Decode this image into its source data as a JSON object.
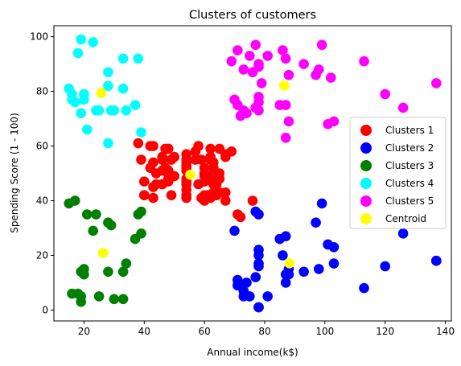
{
  "chart_data": {
    "type": "scatter",
    "title": "Clusters of customers",
    "xlabel": "Annual income(k$)",
    "ylabel": "Spending Score (1 - 100)",
    "xlim": [
      10,
      142
    ],
    "ylim": [
      -4,
      104
    ],
    "x_ticks": [
      20,
      40,
      60,
      80,
      100,
      120,
      140
    ],
    "y_ticks": [
      0,
      20,
      40,
      60,
      80,
      100
    ],
    "grid": false,
    "legend_position": "center-right",
    "series": [
      {
        "name": "Clusters 1",
        "color": "#ff0000",
        "points": [
          [
            38,
            61
          ],
          [
            39,
            55
          ],
          [
            40,
            47
          ],
          [
            40,
            42
          ],
          [
            40,
            42
          ],
          [
            42,
            52
          ],
          [
            42,
            60
          ],
          [
            43,
            54
          ],
          [
            43,
            60
          ],
          [
            43,
            45
          ],
          [
            43,
            41
          ],
          [
            44,
            50
          ],
          [
            44,
            46
          ],
          [
            46,
            51
          ],
          [
            46,
            46
          ],
          [
            46,
            56
          ],
          [
            46,
            55
          ],
          [
            47,
            52
          ],
          [
            47,
            59
          ],
          [
            48,
            51
          ],
          [
            48,
            59
          ],
          [
            48,
            50
          ],
          [
            48,
            48
          ],
          [
            48,
            59
          ],
          [
            48,
            47
          ],
          [
            49,
            55
          ],
          [
            49,
            42
          ],
          [
            50,
            49
          ],
          [
            50,
            56
          ],
          [
            54,
            47
          ],
          [
            54,
            54
          ],
          [
            54,
            53
          ],
          [
            54,
            48
          ],
          [
            54,
            52
          ],
          [
            54,
            42
          ],
          [
            54,
            51
          ],
          [
            54,
            55
          ],
          [
            54,
            41
          ],
          [
            54,
            44
          ],
          [
            54,
            57
          ],
          [
            54,
            46
          ],
          [
            57,
            58
          ],
          [
            57,
            55
          ],
          [
            58,
            60
          ],
          [
            58,
            46
          ],
          [
            59,
            55
          ],
          [
            59,
            41
          ],
          [
            60,
            49
          ],
          [
            60,
            40
          ],
          [
            60,
            42
          ],
          [
            60,
            52
          ],
          [
            60,
            47
          ],
          [
            60,
            50
          ],
          [
            61,
            42
          ],
          [
            61,
            49
          ],
          [
            62,
            41
          ],
          [
            62,
            48
          ],
          [
            62,
            59
          ],
          [
            62,
            55
          ],
          [
            62,
            56
          ],
          [
            62,
            42
          ],
          [
            63,
            50
          ],
          [
            63,
            46
          ],
          [
            63,
            43
          ],
          [
            63,
            48
          ],
          [
            63,
            52
          ],
          [
            63,
            54
          ],
          [
            64,
            42
          ],
          [
            64,
            46
          ],
          [
            65,
            48
          ],
          [
            65,
            50
          ],
          [
            65,
            43
          ],
          [
            65,
            59
          ],
          [
            67,
            43
          ],
          [
            67,
            57
          ],
          [
            67,
            56
          ],
          [
            67,
            40
          ],
          [
            69,
            58
          ],
          [
            71,
            35
          ],
          [
            72,
            34
          ],
          [
            76,
            40
          ]
        ]
      },
      {
        "name": "Clusters 2",
        "color": "#0000ff",
        "points": [
          [
            70,
            29
          ],
          [
            71,
            11
          ],
          [
            71,
            9
          ],
          [
            73,
            5
          ],
          [
            73,
            7
          ],
          [
            74,
            10
          ],
          [
            75,
            5
          ],
          [
            77,
            12
          ],
          [
            77,
            36
          ],
          [
            78,
            22
          ],
          [
            78,
            17
          ],
          [
            78,
            20
          ],
          [
            78,
            16
          ],
          [
            78,
            1
          ],
          [
            78,
            1
          ],
          [
            78,
            35
          ],
          [
            81,
            5
          ],
          [
            85,
            26
          ],
          [
            86,
            20
          ],
          [
            87,
            27
          ],
          [
            87,
            13
          ],
          [
            87,
            10
          ],
          [
            88,
            13
          ],
          [
            88,
            15
          ],
          [
            93,
            14
          ],
          [
            97,
            32
          ],
          [
            98,
            15
          ],
          [
            99,
            39
          ],
          [
            101,
            24
          ],
          [
            103,
            17
          ],
          [
            103,
            23
          ],
          [
            113,
            8
          ],
          [
            120,
            16
          ],
          [
            126,
            28
          ],
          [
            137,
            18
          ],
          [
            137,
            18
          ],
          [
            101,
            24
          ]
        ]
      },
      {
        "name": "Clusters 3",
        "color": "#008000",
        "points": [
          [
            15,
            39
          ],
          [
            16,
            6
          ],
          [
            17,
            40
          ],
          [
            18,
            6
          ],
          [
            19,
            3
          ],
          [
            19,
            14
          ],
          [
            20,
            15
          ],
          [
            20,
            13
          ],
          [
            21,
            35
          ],
          [
            23,
            29
          ],
          [
            24,
            35
          ],
          [
            25,
            5
          ],
          [
            28,
            14
          ],
          [
            28,
            32
          ],
          [
            29,
            31
          ],
          [
            30,
            4
          ],
          [
            33,
            4
          ],
          [
            33,
            14
          ],
          [
            34,
            17
          ],
          [
            37,
            26
          ],
          [
            38,
            35
          ],
          [
            39,
            36
          ],
          [
            39,
            28
          ],
          [
            19,
            5
          ]
        ]
      },
      {
        "name": "Clusters 4",
        "color": "#00ffff",
        "points": [
          [
            15,
            81
          ],
          [
            16,
            77
          ],
          [
            17,
            76
          ],
          [
            18,
            94
          ],
          [
            19,
            72
          ],
          [
            19,
            99
          ],
          [
            20,
            77
          ],
          [
            20,
            79
          ],
          [
            21,
            66
          ],
          [
            23,
            98
          ],
          [
            24,
            73
          ],
          [
            25,
            73
          ],
          [
            28,
            82
          ],
          [
            28,
            61
          ],
          [
            28,
            87
          ],
          [
            29,
            73
          ],
          [
            30,
            73
          ],
          [
            33,
            92
          ],
          [
            33,
            81
          ],
          [
            34,
            73
          ],
          [
            37,
            75
          ],
          [
            38,
            92
          ],
          [
            39,
            65
          ],
          [
            16,
            79
          ]
        ]
      },
      {
        "name": "Clusters 5",
        "color": "#ff00ff",
        "points": [
          [
            69,
            91
          ],
          [
            70,
            77
          ],
          [
            71,
            95
          ],
          [
            71,
            75
          ],
          [
            72,
            71
          ],
          [
            73,
            88
          ],
          [
            73,
            73
          ],
          [
            74,
            72
          ],
          [
            75,
            93
          ],
          [
            76,
            87
          ],
          [
            77,
            97
          ],
          [
            77,
            74
          ],
          [
            78,
            90
          ],
          [
            78,
            76
          ],
          [
            78,
            89
          ],
          [
            78,
            78
          ],
          [
            78,
            73
          ],
          [
            79,
            83
          ],
          [
            81,
            93
          ],
          [
            85,
            75
          ],
          [
            86,
            95
          ],
          [
            87,
            63
          ],
          [
            87,
            75
          ],
          [
            87,
            92
          ],
          [
            88,
            86
          ],
          [
            88,
            69
          ],
          [
            93,
            90
          ],
          [
            97,
            86
          ],
          [
            98,
            88
          ],
          [
            99,
            97
          ],
          [
            101,
            68
          ],
          [
            102,
            85
          ],
          [
            103,
            69
          ],
          [
            113,
            91
          ],
          [
            120,
            79
          ],
          [
            126,
            74
          ],
          [
            137,
            83
          ]
        ]
      },
      {
        "name": "Centroid",
        "color": "#ffff00",
        "points": [
          [
            55.3,
            49.5
          ],
          [
            86.5,
            82.1
          ],
          [
            88.2,
            17.1
          ],
          [
            26.3,
            20.9
          ],
          [
            25.7,
            79.4
          ]
        ]
      }
    ]
  }
}
